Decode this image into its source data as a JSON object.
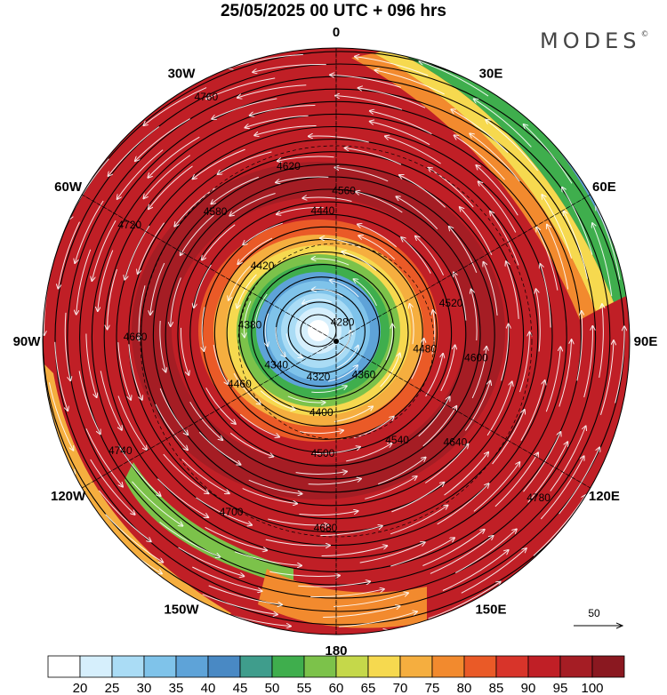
{
  "title": "25/05/2025  00 UTC  + 096 hrs",
  "brand": "MODES",
  "brand_mark": "©",
  "longitude_labels": [
    {
      "text": "0",
      "lon": 0
    },
    {
      "text": "30E",
      "lon": 30
    },
    {
      "text": "60E",
      "lon": 60
    },
    {
      "text": "90E",
      "lon": 90
    },
    {
      "text": "120E",
      "lon": 120
    },
    {
      "text": "150E",
      "lon": 150
    },
    {
      "text": "180",
      "lon": 180
    },
    {
      "text": "150W",
      "lon": -150
    },
    {
      "text": "120W",
      "lon": -120
    },
    {
      "text": "90W",
      "lon": -90
    },
    {
      "text": "60W",
      "lon": -60
    },
    {
      "text": "30W",
      "lon": -30
    }
  ],
  "contour_labels": [
    {
      "text": "4280",
      "r": 28,
      "ang": -20
    },
    {
      "text": "4320",
      "r": 52,
      "ang": 90
    },
    {
      "text": "4340",
      "r": 60,
      "ang": 140
    },
    {
      "text": "4360",
      "r": 70,
      "ang": 45
    },
    {
      "text": "4380",
      "r": 75,
      "ang": 185
    },
    {
      "text": "4400",
      "r": 92,
      "ang": 88
    },
    {
      "text": "4420",
      "r": 95,
      "ang": 230
    },
    {
      "text": "4440",
      "r": 135,
      "ang": -88
    },
    {
      "text": "4460",
      "r": 105,
      "ang": 145
    },
    {
      "text": "4480",
      "r": 118,
      "ang": 10
    },
    {
      "text": "4500",
      "r": 138,
      "ang": 88
    },
    {
      "text": "4520",
      "r": 148,
      "ang": -12
    },
    {
      "text": "4540",
      "r": 150,
      "ang": 55
    },
    {
      "text": "4560",
      "r": 160,
      "ang": -80
    },
    {
      "text": "4580",
      "r": 175,
      "ang": -130
    },
    {
      "text": "4600",
      "r": 175,
      "ang": 10
    },
    {
      "text": "4620",
      "r": 188,
      "ang": -100
    },
    {
      "text": "4640",
      "r": 195,
      "ang": 40
    },
    {
      "text": "4660",
      "r": 200,
      "ang": 178
    },
    {
      "text": "4680",
      "r": 222,
      "ang": 88
    },
    {
      "text": "4700",
      "r": 225,
      "ang": 115
    },
    {
      "text": "4720",
      "r": 238,
      "ang": -150
    },
    {
      "text": "4740",
      "r": 255,
      "ang": 148
    },
    {
      "text": "4760",
      "r": 290,
      "ang": -115
    },
    {
      "text": "4780",
      "r": 305,
      "ang": 38
    }
  ],
  "wind_legend": {
    "value": "50"
  },
  "colorbar": {
    "labels": [
      "20",
      "25",
      "30",
      "35",
      "40",
      "45",
      "50",
      "55",
      "60",
      "65",
      "70",
      "75",
      "80",
      "85",
      "90",
      "95",
      "100"
    ],
    "colors": [
      "#ffffff",
      "#d6effc",
      "#aadcf5",
      "#7fc3ea",
      "#5ea3d8",
      "#4989c4",
      "#3f9d8c",
      "#3fae4d",
      "#7cc24a",
      "#c5d84a",
      "#f6d94f",
      "#f5ae3f",
      "#f28a2e",
      "#ea5a27",
      "#d8342a",
      "#c01f26",
      "#a51d24",
      "#8a1820"
    ]
  },
  "colors": {
    "title": "#000000",
    "brand": "#444444"
  }
}
